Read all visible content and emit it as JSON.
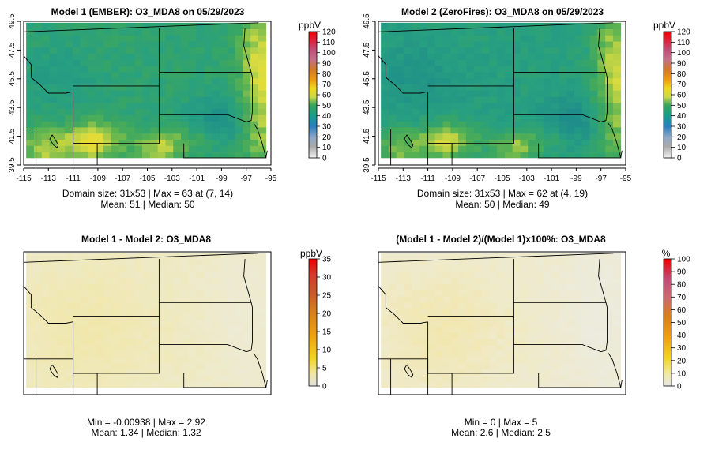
{
  "chart_data": [
    {
      "type": "heatmap",
      "title": "Model 1 (EMBER): O3_MDA8 on 05/29/2023",
      "xticks": [
        "-115",
        "-113",
        "-111",
        "-109",
        "-107",
        "-105",
        "-103",
        "-101",
        "-99",
        "-97",
        "-95"
      ],
      "yticks": [
        "39.5",
        "41.5",
        "43.5",
        "45.5",
        "47.5",
        "49.5"
      ],
      "xlim": [
        -115,
        -95
      ],
      "ylim": [
        39.5,
        49.5
      ],
      "grid_size": [
        31,
        53
      ],
      "summary_lines": [
        "Domain size: 31x53 | Max = 63 at (7, 14)",
        "Mean: 51 |  Median: 50"
      ],
      "mean": 51,
      "median": 50,
      "max": 63,
      "max_location": [
        7,
        14
      ],
      "colorbar": {
        "unit": "ppbV",
        "ticks": [
          "0",
          "10",
          "20",
          "30",
          "40",
          "50",
          "60",
          "70",
          "80",
          "90",
          "100",
          "110",
          "120"
        ],
        "range": [
          0,
          120
        ],
        "palette": "ozone"
      },
      "variant": "m1"
    },
    {
      "type": "heatmap",
      "title": "Model 2 (ZeroFires): O3_MDA8 on 05/29/2023",
      "xticks": [
        "-115",
        "-113",
        "-111",
        "-109",
        "-107",
        "-105",
        "-103",
        "-101",
        "-99",
        "-97",
        "-95"
      ],
      "yticks": [
        "39.5",
        "41.5",
        "43.5",
        "45.5",
        "47.5",
        "49.5"
      ],
      "xlim": [
        -115,
        -95
      ],
      "ylim": [
        39.5,
        49.5
      ],
      "grid_size": [
        31,
        53
      ],
      "summary_lines": [
        "Domain size: 31x53 | Max = 62 at (4, 19)",
        "Mean: 50 |  Median: 49"
      ],
      "mean": 50,
      "median": 49,
      "max": 62,
      "max_location": [
        4,
        19
      ],
      "colorbar": {
        "unit": "ppbV",
        "ticks": [
          "0",
          "10",
          "20",
          "30",
          "40",
          "50",
          "60",
          "70",
          "80",
          "90",
          "100",
          "110",
          "120"
        ],
        "range": [
          0,
          120
        ],
        "palette": "ozone"
      },
      "variant": "m2"
    },
    {
      "type": "heatmap",
      "title": "Model 1 - Model 2: O3_MDA8",
      "xlim": [
        -115,
        -95
      ],
      "ylim": [
        39.5,
        49.5
      ],
      "summary_lines": [
        "Min = -0.00938 | Max = 2.92",
        "Mean: 1.34 |  Median: 1.32"
      ],
      "min": -0.00938,
      "max": 2.92,
      "mean": 1.34,
      "median": 1.32,
      "colorbar": {
        "unit": "ppbV",
        "ticks": [
          "0",
          "5",
          "10",
          "15",
          "20",
          "25",
          "30",
          "35"
        ],
        "range": [
          0,
          35
        ],
        "palette": "diff"
      },
      "variant": "diff"
    },
    {
      "type": "heatmap",
      "title": "(Model 1 - Model 2)/(Model 1)x100%: O3_MDA8",
      "xlim": [
        -115,
        -95
      ],
      "ylim": [
        39.5,
        49.5
      ],
      "summary_lines": [
        "Min = 0 | Max = 5",
        "Mean: 2.6 |  Median: 2.5"
      ],
      "min": 0,
      "max": 5,
      "mean": 2.6,
      "median": 2.5,
      "colorbar": {
        "unit": "%",
        "ticks": [
          "0",
          "10",
          "20",
          "30",
          "40",
          "50",
          "60",
          "70",
          "80",
          "90",
          "100"
        ],
        "range": [
          0,
          100
        ],
        "palette": "pct"
      },
      "variant": "pct"
    }
  ]
}
